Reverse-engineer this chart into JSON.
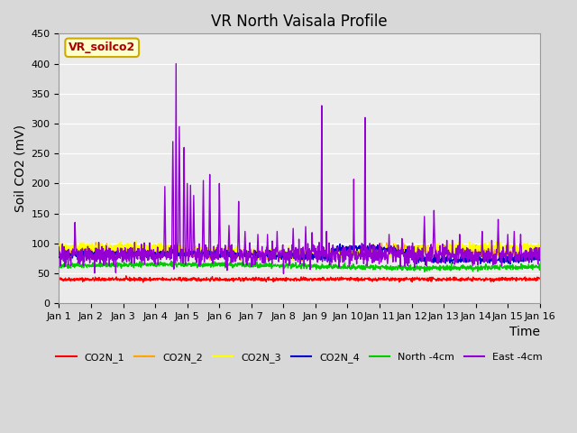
{
  "title": "VR North Vaisala Profile",
  "ylabel": "Soil CO2 (mV)",
  "xlabel": "Time",
  "subtitle_box": "VR_soilco2",
  "ylim": [
    0,
    450
  ],
  "yticks": [
    0,
    50,
    100,
    150,
    200,
    250,
    300,
    350,
    400,
    450
  ],
  "xlim": [
    0,
    15
  ],
  "xtick_labels": [
    "Jan 1",
    "Jan 2",
    "Jan 3",
    "Jan 4",
    "Jan 5",
    "Jan 6",
    "Jan 7",
    "Jan 8",
    "Jan 9",
    "Jan 10",
    "Jan 11",
    "Jan 12",
    "Jan 13",
    "Jan 14",
    "Jan 15",
    "Jan 16"
  ],
  "series": {
    "CO2N_1": {
      "color": "#ff0000",
      "lw": 1.0
    },
    "CO2N_2": {
      "color": "#ffa500",
      "lw": 1.0
    },
    "CO2N_3": {
      "color": "#ffff00",
      "lw": 1.0
    },
    "CO2N_4": {
      "color": "#0000cd",
      "lw": 1.0
    },
    "North -4cm": {
      "color": "#00cc00",
      "lw": 1.0
    },
    "East -4cm": {
      "color": "#9400d3",
      "lw": 1.0
    }
  },
  "fig_bg_color": "#d8d8d8",
  "plot_bg_color": "#ebebeb",
  "grid_color": "#ffffff",
  "title_fontsize": 12,
  "axis_label_fontsize": 10,
  "tick_fontsize": 8,
  "legend_fontsize": 8
}
